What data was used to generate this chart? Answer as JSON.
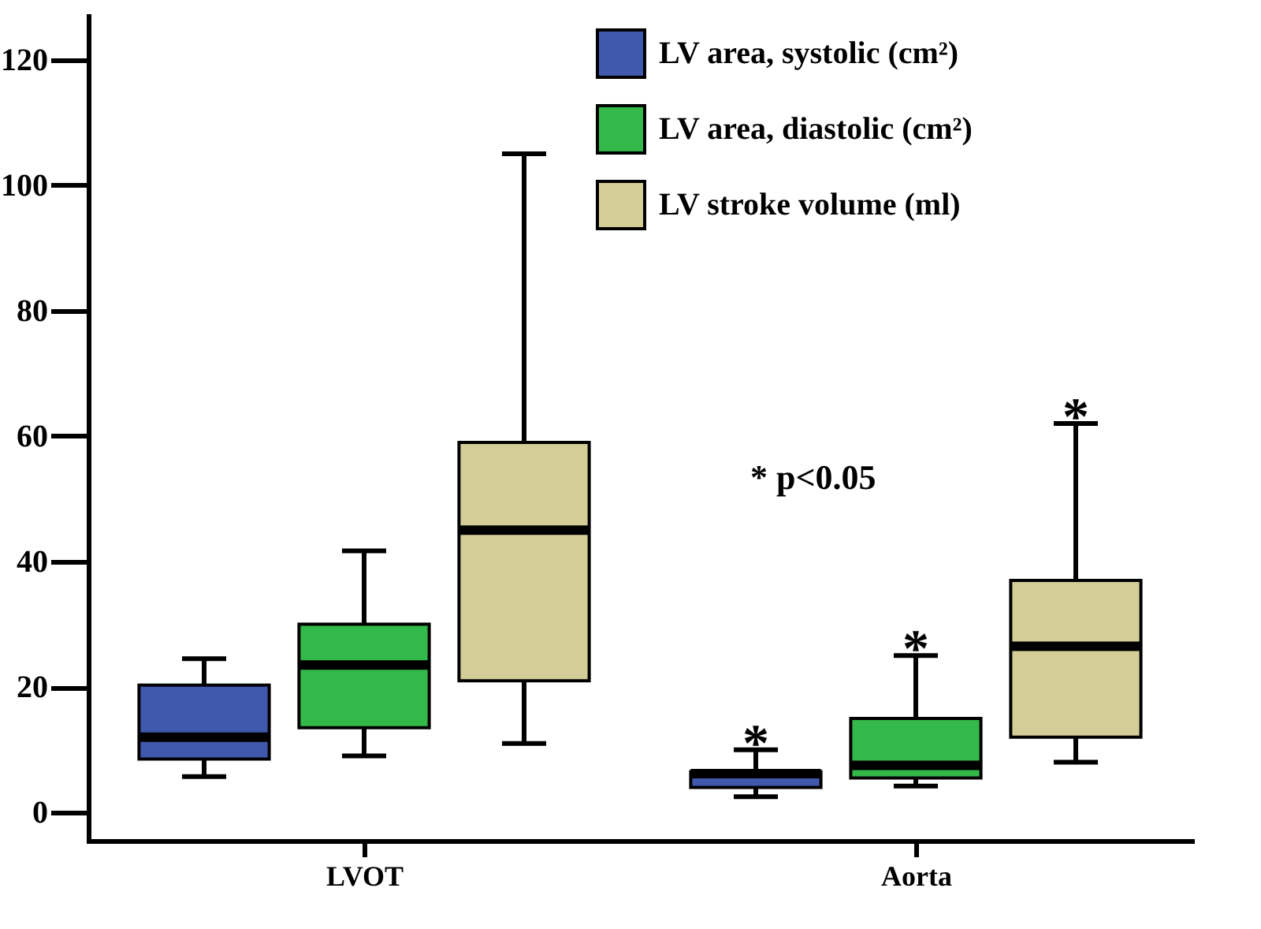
{
  "chart_data": {
    "type": "box",
    "categories": [
      "LVOT",
      "Aorta"
    ],
    "series": [
      {
        "name": "LV area, systolic (cm²)",
        "color": "#4059ad",
        "boxes": [
          {
            "low": 5.7,
            "q1": 8.5,
            "median": 12,
            "q3": 20.3,
            "high": 24.5
          },
          {
            "low": 2.5,
            "q1": 4,
            "median": 6.2,
            "q3": 6.5,
            "high": 10
          }
        ]
      },
      {
        "name": "LV area, diastolic (cm²)",
        "color": "#33b84a",
        "boxes": [
          {
            "low": 9,
            "q1": 13.5,
            "median": 23.5,
            "q3": 30,
            "high": 41.7
          },
          {
            "low": 4.2,
            "q1": 5.5,
            "median": 7.5,
            "q3": 15,
            "high": 25
          }
        ]
      },
      {
        "name": "LV stroke volume (ml)",
        "color": "#d4cd98",
        "boxes": [
          {
            "low": 11,
            "q1": 21,
            "median": 45,
            "q3": 59,
            "high": 105
          },
          {
            "low": 8,
            "q1": 12,
            "median": 26.5,
            "q3": 37,
            "high": 62
          }
        ]
      }
    ],
    "ylim": [
      -4.5,
      127
    ],
    "yticks": [
      0,
      20,
      40,
      60,
      80,
      100,
      120
    ],
    "grid": false,
    "legend": "top right",
    "annotations": [
      "*",
      "*",
      "*",
      "* p<0.05"
    ]
  }
}
